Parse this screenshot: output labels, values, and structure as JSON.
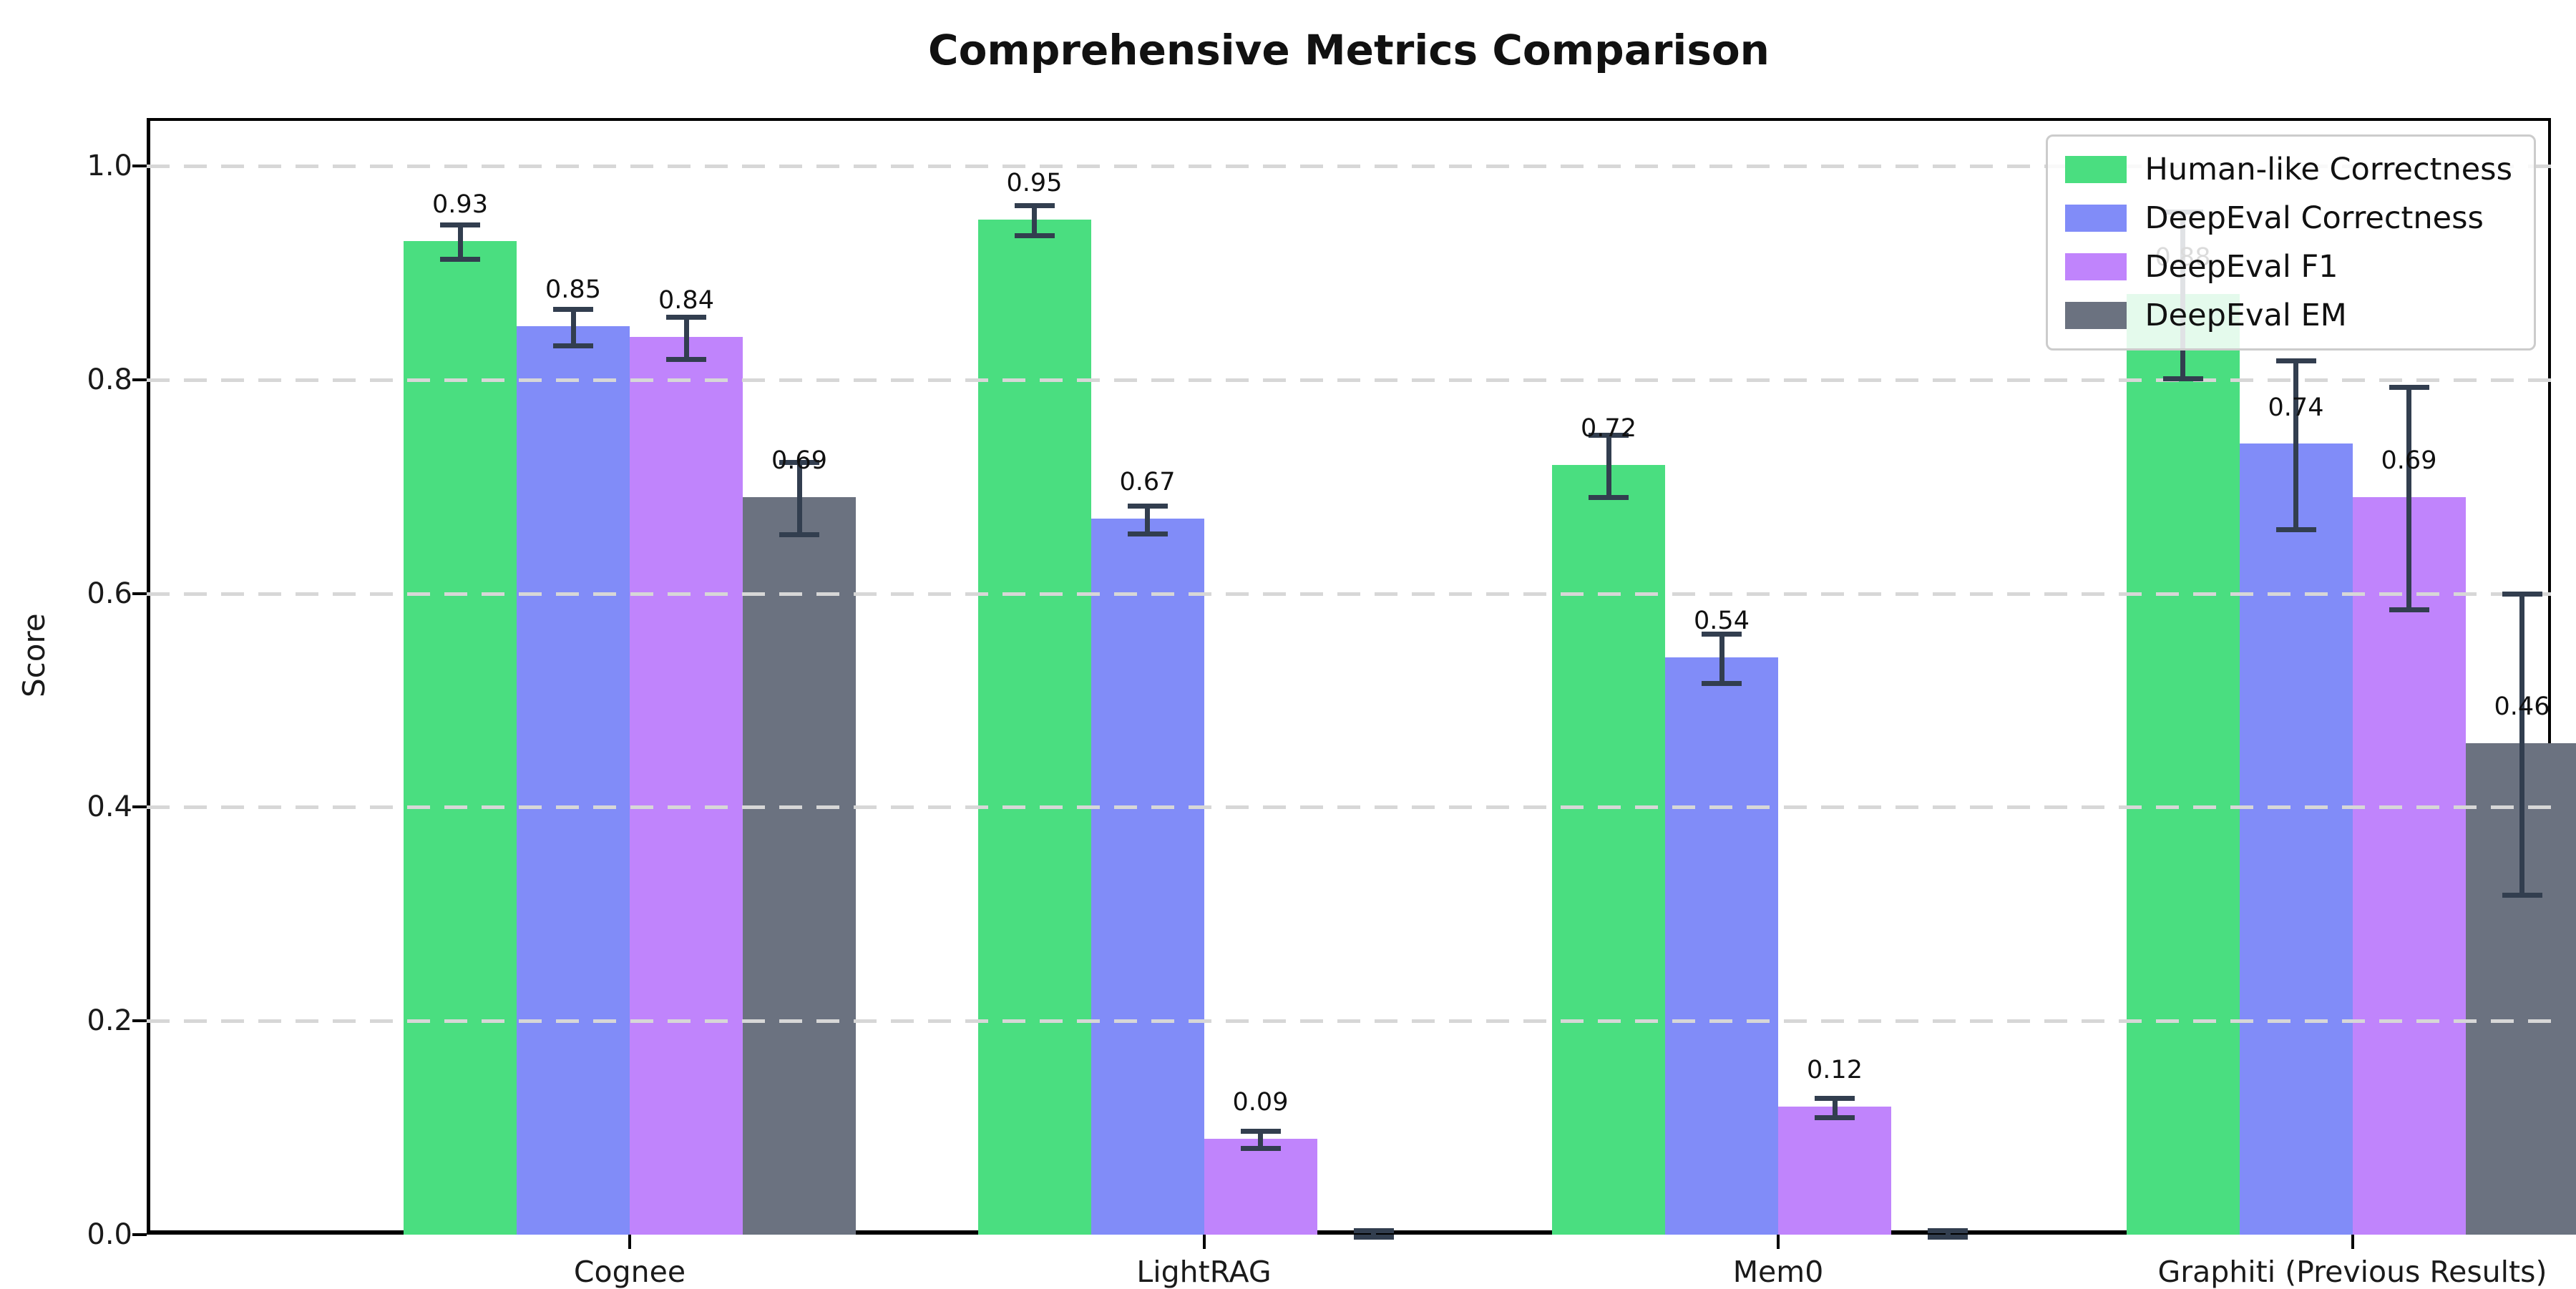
{
  "chart_data": {
    "type": "bar",
    "title": "Comprehensive Metrics Comparison",
    "ylabel": "Score",
    "xlabel": "",
    "categories": [
      "Cognee",
      "LightRAG",
      "Mem0",
      "Graphiti (Previous Results)"
    ],
    "ytick_labels": [
      "0.0",
      "0.2",
      "0.4",
      "0.6",
      "0.8",
      "1.0"
    ],
    "yticks": [
      0.0,
      0.2,
      0.4,
      0.6,
      0.8,
      1.0
    ],
    "ylim": [
      0.0,
      1.045
    ],
    "grid": "horizontal-dashed",
    "legend_position": "upper right",
    "error_bar_color": "#323e4f",
    "series": [
      {
        "name": "Human-like Correctness",
        "color": "#4ade80",
        "values": [
          0.93,
          0.95,
          0.72,
          0.88
        ],
        "errors": [
          0.015,
          0.013,
          0.028,
          0.077
        ],
        "labels": [
          "0.93",
          "0.95",
          "0.72",
          "0.88"
        ]
      },
      {
        "name": "DeepEval Correctness",
        "color": "#818cf8",
        "values": [
          0.85,
          0.67,
          0.54,
          0.74
        ],
        "errors": [
          0.016,
          0.012,
          0.022,
          0.078
        ],
        "labels": [
          "0.85",
          "0.67",
          "0.54",
          "0.74"
        ]
      },
      {
        "name": "DeepEval F1",
        "color": "#c084fc",
        "values": [
          0.84,
          0.09,
          0.12,
          0.69
        ],
        "errors": [
          0.019,
          0.007,
          0.008,
          0.103
        ],
        "labels": [
          "0.84",
          "0.09",
          "0.12",
          "0.69"
        ]
      },
      {
        "name": "DeepEval EM",
        "color": "#6b7280",
        "values": [
          0.69,
          0.0,
          0.0,
          0.46
        ],
        "errors": [
          0.033,
          0.004,
          0.004,
          0.14
        ],
        "labels": [
          "0.69",
          null,
          null,
          "0.46"
        ]
      }
    ]
  }
}
